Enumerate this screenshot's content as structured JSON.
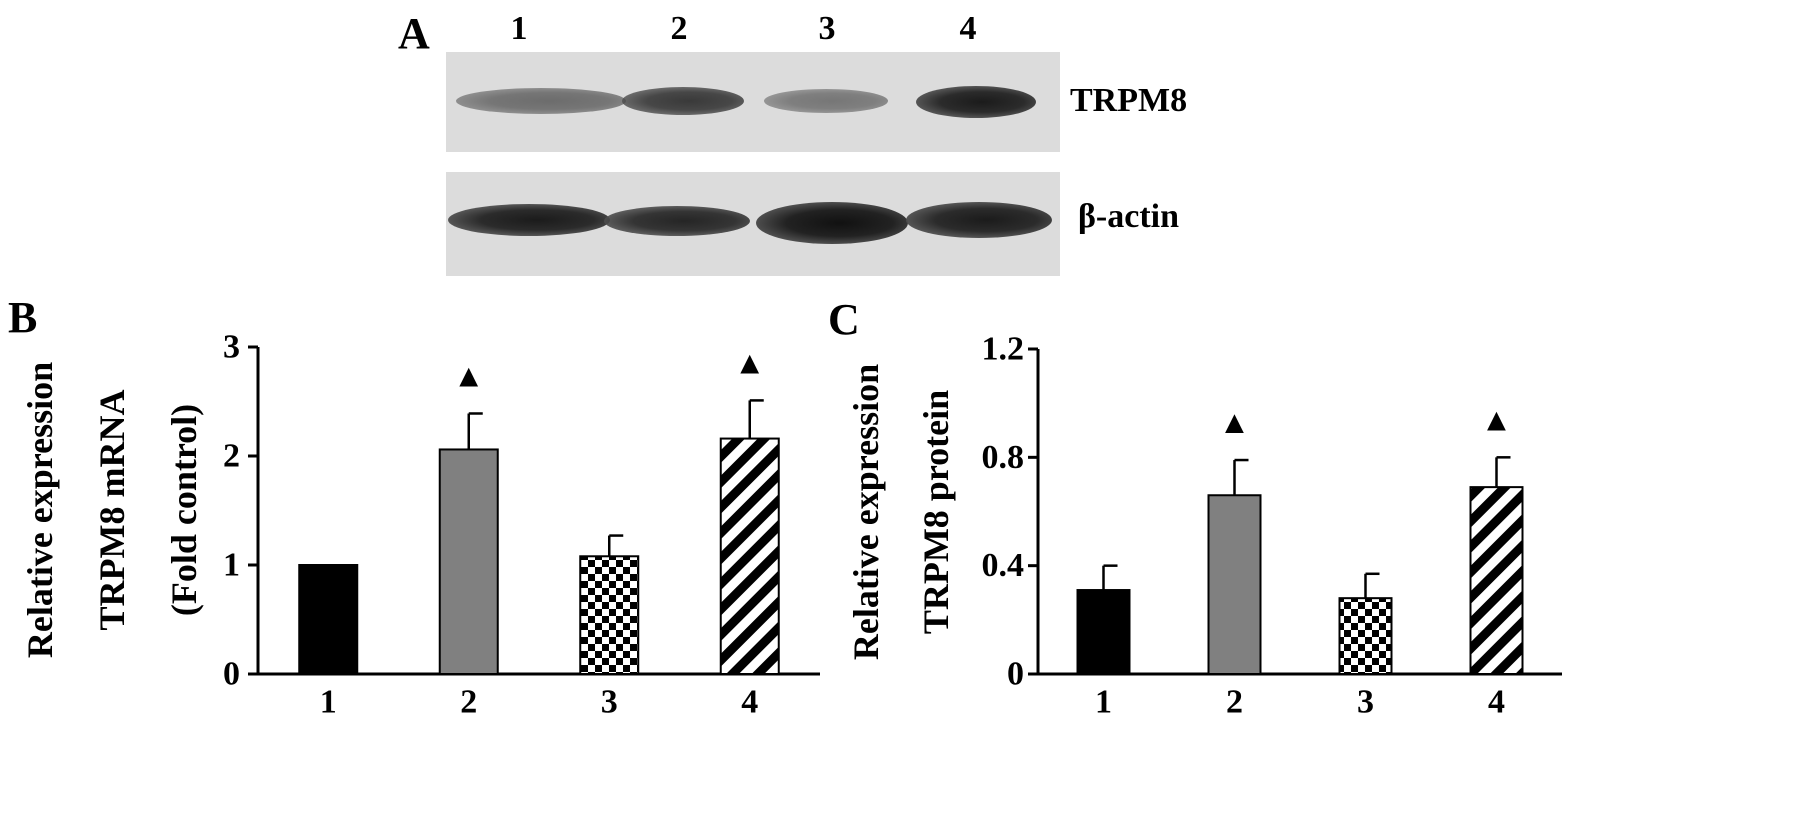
{
  "panel_a": {
    "label": "A",
    "lanes": [
      "1",
      "2",
      "3",
      "4"
    ],
    "blots": [
      {
        "label": "TRPM8",
        "band_intensity": [
          0.55,
          0.8,
          0.5,
          0.95
        ]
      },
      {
        "label": "β-actin",
        "band_intensity": [
          0.95,
          0.9,
          1.0,
          0.95
        ]
      }
    ]
  },
  "colors": {
    "bar1": "#000000",
    "bar2": "#808080",
    "bar_border": "#000000"
  },
  "chart_data": [
    {
      "panel_label": "B",
      "type": "bar",
      "categories": [
        "1",
        "2",
        "3",
        "4"
      ],
      "values": [
        1.0,
        2.06,
        1.08,
        2.16
      ],
      "errors": [
        0,
        0.33,
        0.19,
        0.35
      ],
      "fills": [
        "solid-black",
        "solid-gray",
        "checker",
        "diagonal-hatch"
      ],
      "significance": [
        false,
        true,
        false,
        true
      ],
      "significance_marker": "▲",
      "ylabel_lines": [
        "Relative expression",
        "TRPM8 mRNA",
        "(Fold control)"
      ],
      "xlabel": "",
      "ylim": [
        0,
        3
      ],
      "yticks": [
        0,
        1,
        2,
        3
      ],
      "ytick_labels": [
        "0",
        "1",
        "2",
        "3"
      ]
    },
    {
      "panel_label": "C",
      "type": "bar",
      "categories": [
        "1",
        "2",
        "3",
        "4"
      ],
      "values": [
        0.31,
        0.66,
        0.28,
        0.69
      ],
      "errors": [
        0.09,
        0.13,
        0.09,
        0.11
      ],
      "fills": [
        "solid-black",
        "solid-gray",
        "checker",
        "diagonal-hatch"
      ],
      "significance": [
        false,
        true,
        false,
        true
      ],
      "significance_marker": "▲",
      "ylabel_lines": [
        "Relative expression",
        "TRPM8 protein"
      ],
      "xlabel": "",
      "ylim": [
        0,
        1.2
      ],
      "yticks": [
        0,
        0.4,
        0.8,
        1.2
      ],
      "ytick_labels": [
        "0",
        "0.4",
        "0.8",
        "1.2"
      ]
    }
  ]
}
